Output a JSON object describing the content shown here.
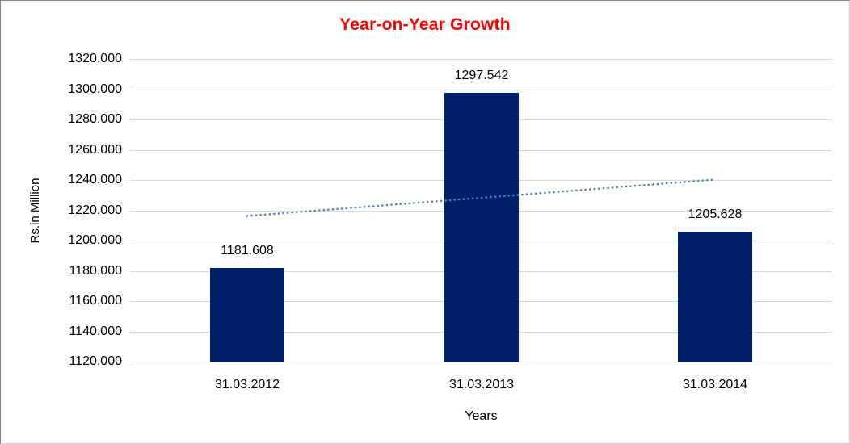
{
  "figure": {
    "background": "#FFFFFF",
    "border_dark": "#848484",
    "border_light": "#C9C9C9"
  },
  "chart_data": {
    "type": "bar",
    "title": "Year-on-Year Growth",
    "title_color": "#FF0000",
    "xlabel": "Years",
    "ylabel": "Rs.in Million",
    "categories": [
      "31.03.2012",
      "31.03.2013",
      "31.03.2014"
    ],
    "series": [
      {
        "name": "Rs.in Million",
        "values": [
          1181.608,
          1297.542,
          1205.628
        ]
      }
    ],
    "data_labels": [
      "1181.608",
      "1297.542",
      "1205.628"
    ],
    "ylim": [
      1120,
      1320
    ],
    "ytick_step": 20,
    "ytick_labels": [
      "1320.000",
      "1300.000",
      "1280.000",
      "1260.000",
      "1240.000",
      "1220.000",
      "1200.000",
      "1180.000",
      "1160.000",
      "1140.000",
      "1120.000"
    ],
    "bar_color": "#002169",
    "gridline_color": "#D9D9D9",
    "grid": true,
    "legend": "none",
    "trendline": {
      "type": "linear",
      "style": "dotted",
      "color": "#4F81BD",
      "endpoint_values": [
        1216.25,
        1240.27
      ]
    }
  }
}
